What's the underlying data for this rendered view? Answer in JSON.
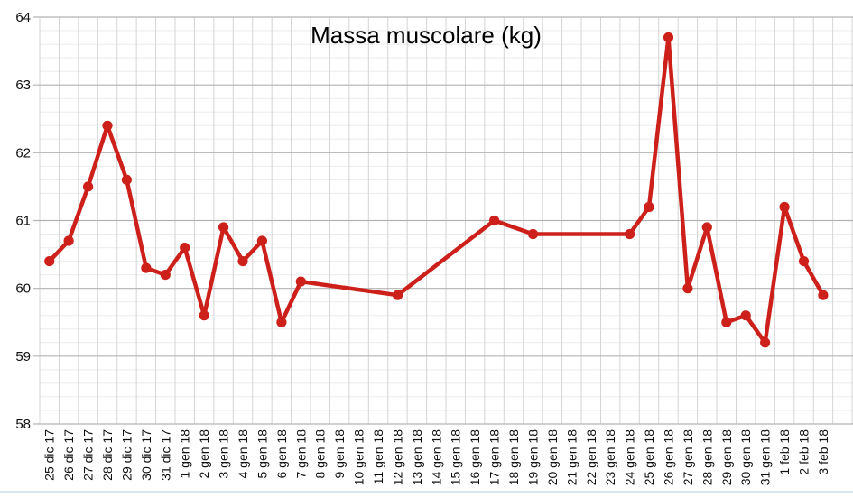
{
  "chart_data": {
    "type": "line",
    "title": "Massa muscolare (kg)",
    "xlabel": "",
    "ylabel": "",
    "ylim": [
      58,
      64
    ],
    "y_major_step": 1,
    "y_minor_step": 0.2,
    "y_tick_labels": [
      "58",
      "59",
      "60",
      "61",
      "62",
      "63",
      "64"
    ],
    "grid": "major-and-minor",
    "legend_position": "none",
    "x_labels": [
      "25 dic 17",
      "26 dic 17",
      "27 dic 17",
      "28 dic 17",
      "29 dic 17",
      "30 dic 17",
      "31 dic 17",
      "1 gen 18",
      "2 gen 18",
      "3 gen 18",
      "4 gen 18",
      "5 gen 18",
      "6 gen 18",
      "7 gen 18",
      "8 gen 18",
      "9 gen 18",
      "10 gen 18",
      "11 gen 18",
      "12 gen 18",
      "13 gen 18",
      "14 gen 18",
      "15 gen 18",
      "16 gen 18",
      "17 gen 18",
      "18 gen 18",
      "19 gen 18",
      "20 gen 18",
      "21 gen 18",
      "22 gen 18",
      "23 gen 18",
      "24 gen 18",
      "25 gen 18",
      "26 gen 18",
      "27 gen 18",
      "28 gen 18",
      "29 gen 18",
      "30 gen 18",
      "31 gen 18",
      "1 feb 18",
      "2 feb 18",
      "3 feb 18"
    ],
    "series": [
      {
        "name": "Massa muscolare",
        "color": "#cd201a",
        "values": [
          60.4,
          60.7,
          61.5,
          62.4,
          61.6,
          60.3,
          60.2,
          60.6,
          59.6,
          60.9,
          60.4,
          60.7,
          59.5,
          60.1,
          null,
          null,
          null,
          null,
          59.9,
          null,
          null,
          null,
          null,
          61.0,
          null,
          60.8,
          null,
          null,
          null,
          null,
          60.8,
          61.2,
          63.7,
          60.0,
          60.9,
          59.5,
          59.6,
          59.2,
          61.2,
          60.4,
          59.9
        ]
      }
    ],
    "colors": {
      "series": "#cd201a",
      "major_grid": "#b3b3b3",
      "minor_grid": "#ebebeb",
      "vertical_grid": "#d4d4d4",
      "axis_text": "#111111",
      "title_text": "#000000",
      "bottom_rule": "#b7cde0",
      "background": "#ffffff"
    }
  }
}
